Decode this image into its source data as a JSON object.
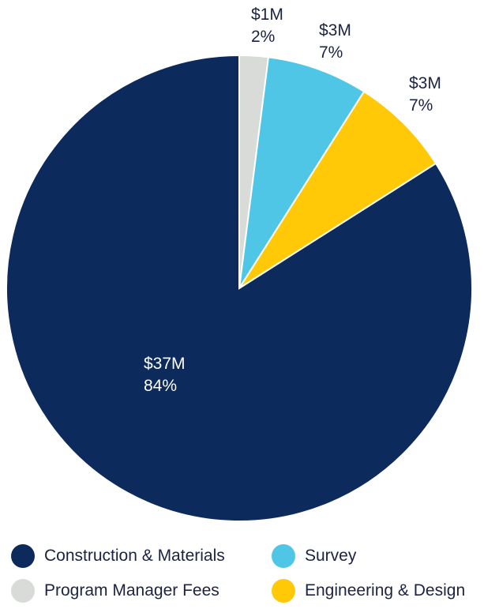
{
  "chart_data": {
    "type": "pie",
    "title": "",
    "start_angle_deg": 0,
    "direction": "clockwise",
    "slices": [
      {
        "name": "Program Manager Fees",
        "value": 1,
        "value_label": "$1M",
        "percent": 2,
        "percent_label": "2%",
        "color": "#d9dbd8"
      },
      {
        "name": "Survey",
        "value": 3,
        "value_label": "$3M",
        "percent": 7,
        "percent_label": "7%",
        "color": "#4fc6e6"
      },
      {
        "name": "Engineering & Design",
        "value": 3,
        "value_label": "$3M",
        "percent": 7,
        "percent_label": "7%",
        "color": "#ffc907"
      },
      {
        "name": "Construction & Materials",
        "value": 37,
        "value_label": "$37M",
        "percent": 84,
        "percent_label": "84%",
        "color": "#0d2a5c"
      }
    ],
    "legend": {
      "placement": "bottom",
      "items": [
        "Construction & Materials",
        "Survey",
        "Program Manager Fees",
        "Engineering & Design"
      ]
    }
  }
}
